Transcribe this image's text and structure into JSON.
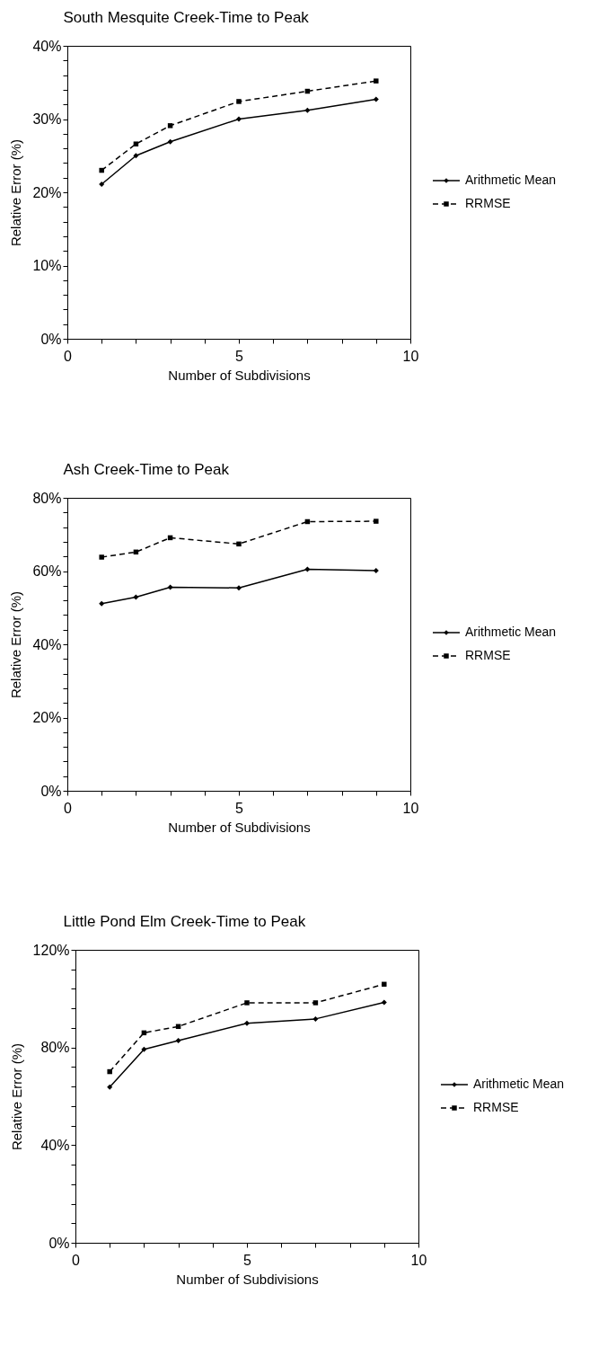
{
  "chart_data": [
    {
      "type": "line",
      "title": "South Mesquite Creek-Time to Peak",
      "xlabel": "Number of Subdivisions",
      "ylabel": "Relative Error (%)",
      "x": [
        1,
        2,
        3,
        5,
        7,
        9
      ],
      "xlim": [
        0,
        10
      ],
      "xticks": [
        0,
        {
          "value": 1,
          "label": null
        },
        {
          "value": 2,
          "label": null
        },
        {
          "value": 3,
          "label": null
        },
        {
          "value": 4,
          "label": null
        },
        5,
        {
          "value": 6,
          "label": null
        },
        {
          "value": 7,
          "label": null
        },
        {
          "value": 8,
          "label": null
        },
        {
          "value": 9,
          "label": null
        },
        10
      ],
      "ylim": [
        0,
        40
      ],
      "yticks": [
        {
          "value": 0,
          "label": "0%"
        },
        {
          "value": 2,
          "label": null
        },
        {
          "value": 4,
          "label": null
        },
        {
          "value": 6,
          "label": null
        },
        {
          "value": 8,
          "label": null
        },
        {
          "value": 10,
          "label": "10%"
        },
        {
          "value": 12,
          "label": null
        },
        {
          "value": 14,
          "label": null
        },
        {
          "value": 16,
          "label": null
        },
        {
          "value": 18,
          "label": null
        },
        {
          "value": 20,
          "label": "20%"
        },
        {
          "value": 22,
          "label": null
        },
        {
          "value": 24,
          "label": null
        },
        {
          "value": 26,
          "label": null
        },
        {
          "value": 28,
          "label": null
        },
        {
          "value": 30,
          "label": "30%"
        },
        {
          "value": 32,
          "label": null
        },
        {
          "value": 34,
          "label": null
        },
        {
          "value": 36,
          "label": null
        },
        {
          "value": 38,
          "label": null
        },
        {
          "value": 40,
          "label": "40%"
        }
      ],
      "grid": false,
      "legend": "right",
      "series": [
        {
          "name": "Arithmetic Mean",
          "color": "#000000",
          "marker": "diamond",
          "line_style": "solid",
          "values": [
            21.1,
            25.0,
            26.9,
            30.0,
            31.2,
            32.7
          ]
        },
        {
          "name": "RRMSE",
          "color": "#000000",
          "marker": "square",
          "line_style": "dashed",
          "values": [
            23.0,
            26.6,
            29.1,
            32.4,
            33.8,
            35.2
          ]
        }
      ]
    },
    {
      "type": "line",
      "title": "Ash Creek-Time to Peak",
      "xlabel": "Number of Subdivisions",
      "ylabel": "Relative Error (%)",
      "x": [
        1,
        2,
        3,
        5,
        7,
        9
      ],
      "xlim": [
        0,
        10
      ],
      "xticks": [
        0,
        {
          "value": 1,
          "label": null
        },
        {
          "value": 2,
          "label": null
        },
        {
          "value": 3,
          "label": null
        },
        {
          "value": 4,
          "label": null
        },
        5,
        {
          "value": 6,
          "label": null
        },
        {
          "value": 7,
          "label": null
        },
        {
          "value": 8,
          "label": null
        },
        {
          "value": 9,
          "label": null
        },
        10
      ],
      "ylim": [
        0,
        80
      ],
      "yticks": [
        {
          "value": 0,
          "label": "0%"
        },
        {
          "value": 4,
          "label": null
        },
        {
          "value": 8,
          "label": null
        },
        {
          "value": 12,
          "label": null
        },
        {
          "value": 16,
          "label": null
        },
        {
          "value": 20,
          "label": "20%"
        },
        {
          "value": 24,
          "label": null
        },
        {
          "value": 28,
          "label": null
        },
        {
          "value": 32,
          "label": null
        },
        {
          "value": 36,
          "label": null
        },
        {
          "value": 40,
          "label": "40%"
        },
        {
          "value": 44,
          "label": null
        },
        {
          "value": 48,
          "label": null
        },
        {
          "value": 52,
          "label": null
        },
        {
          "value": 56,
          "label": null
        },
        {
          "value": 60,
          "label": "60%"
        },
        {
          "value": 64,
          "label": null
        },
        {
          "value": 68,
          "label": null
        },
        {
          "value": 72,
          "label": null
        },
        {
          "value": 76,
          "label": null
        },
        {
          "value": 80,
          "label": "80%"
        }
      ],
      "grid": false,
      "legend": "right",
      "series": [
        {
          "name": "Arithmetic Mean",
          "color": "#000000",
          "marker": "diamond",
          "line_style": "solid",
          "values": [
            51.1,
            52.9,
            55.6,
            55.4,
            60.5,
            60.1
          ]
        },
        {
          "name": "RRMSE",
          "color": "#000000",
          "marker": "square",
          "line_style": "dashed",
          "values": [
            63.8,
            65.2,
            69.1,
            67.4,
            73.5,
            73.6
          ]
        }
      ]
    },
    {
      "type": "line",
      "title": "Little Pond Elm Creek-Time to Peak",
      "xlabel": "Number of Subdivisions",
      "ylabel": "Relative Error (%)",
      "x": [
        1,
        2,
        3,
        5,
        7,
        9
      ],
      "xlim": [
        0,
        10
      ],
      "xticks": [
        0,
        {
          "value": 1,
          "label": null
        },
        {
          "value": 2,
          "label": null
        },
        {
          "value": 3,
          "label": null
        },
        {
          "value": 4,
          "label": null
        },
        5,
        {
          "value": 6,
          "label": null
        },
        {
          "value": 7,
          "label": null
        },
        {
          "value": 8,
          "label": null
        },
        {
          "value": 9,
          "label": null
        },
        10
      ],
      "ylim": [
        0,
        120
      ],
      "yticks": [
        {
          "value": 0,
          "label": "0%"
        },
        {
          "value": 8,
          "label": null
        },
        {
          "value": 16,
          "label": null
        },
        {
          "value": 24,
          "label": null
        },
        {
          "value": 32,
          "label": null
        },
        {
          "value": 40,
          "label": "40%"
        },
        {
          "value": 48,
          "label": null
        },
        {
          "value": 56,
          "label": null
        },
        {
          "value": 64,
          "label": null
        },
        {
          "value": 72,
          "label": null
        },
        {
          "value": 80,
          "label": "80%"
        },
        {
          "value": 88,
          "label": null
        },
        {
          "value": 96,
          "label": null
        },
        {
          "value": 104,
          "label": null
        },
        {
          "value": 112,
          "label": null
        },
        {
          "value": 120,
          "label": "120%"
        }
      ],
      "grid": false,
      "legend": "right",
      "series": [
        {
          "name": "Arithmetic Mean",
          "color": "#000000",
          "marker": "diamond",
          "line_style": "solid",
          "values": [
            63.8,
            79.2,
            82.8,
            89.9,
            91.7,
            98.5
          ]
        },
        {
          "name": "RRMSE",
          "color": "#000000",
          "marker": "square",
          "line_style": "dashed",
          "values": [
            70.1,
            86.0,
            88.6,
            98.3,
            98.3,
            105.9
          ]
        }
      ]
    }
  ]
}
